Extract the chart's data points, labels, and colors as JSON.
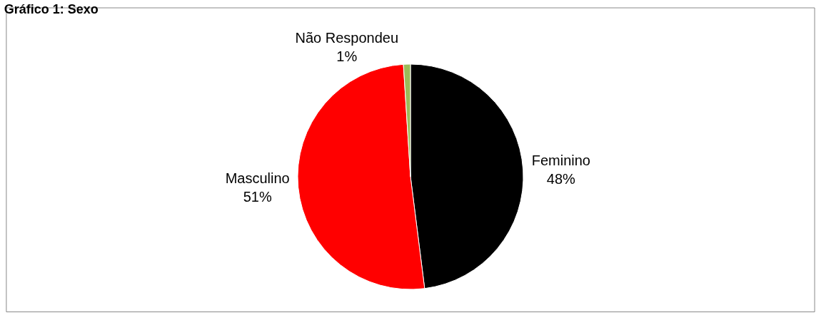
{
  "chart_data": {
    "type": "pie",
    "title": "Gráfico 1: Sexo",
    "categories": [
      "Feminino",
      "Masculino",
      "Não Respondeu"
    ],
    "values": [
      48,
      51,
      1
    ],
    "value_labels": [
      "48%",
      "51%",
      "1%"
    ],
    "colors": [
      "#000000",
      "#ff0000",
      "#9bbb59"
    ],
    "legend": false
  }
}
